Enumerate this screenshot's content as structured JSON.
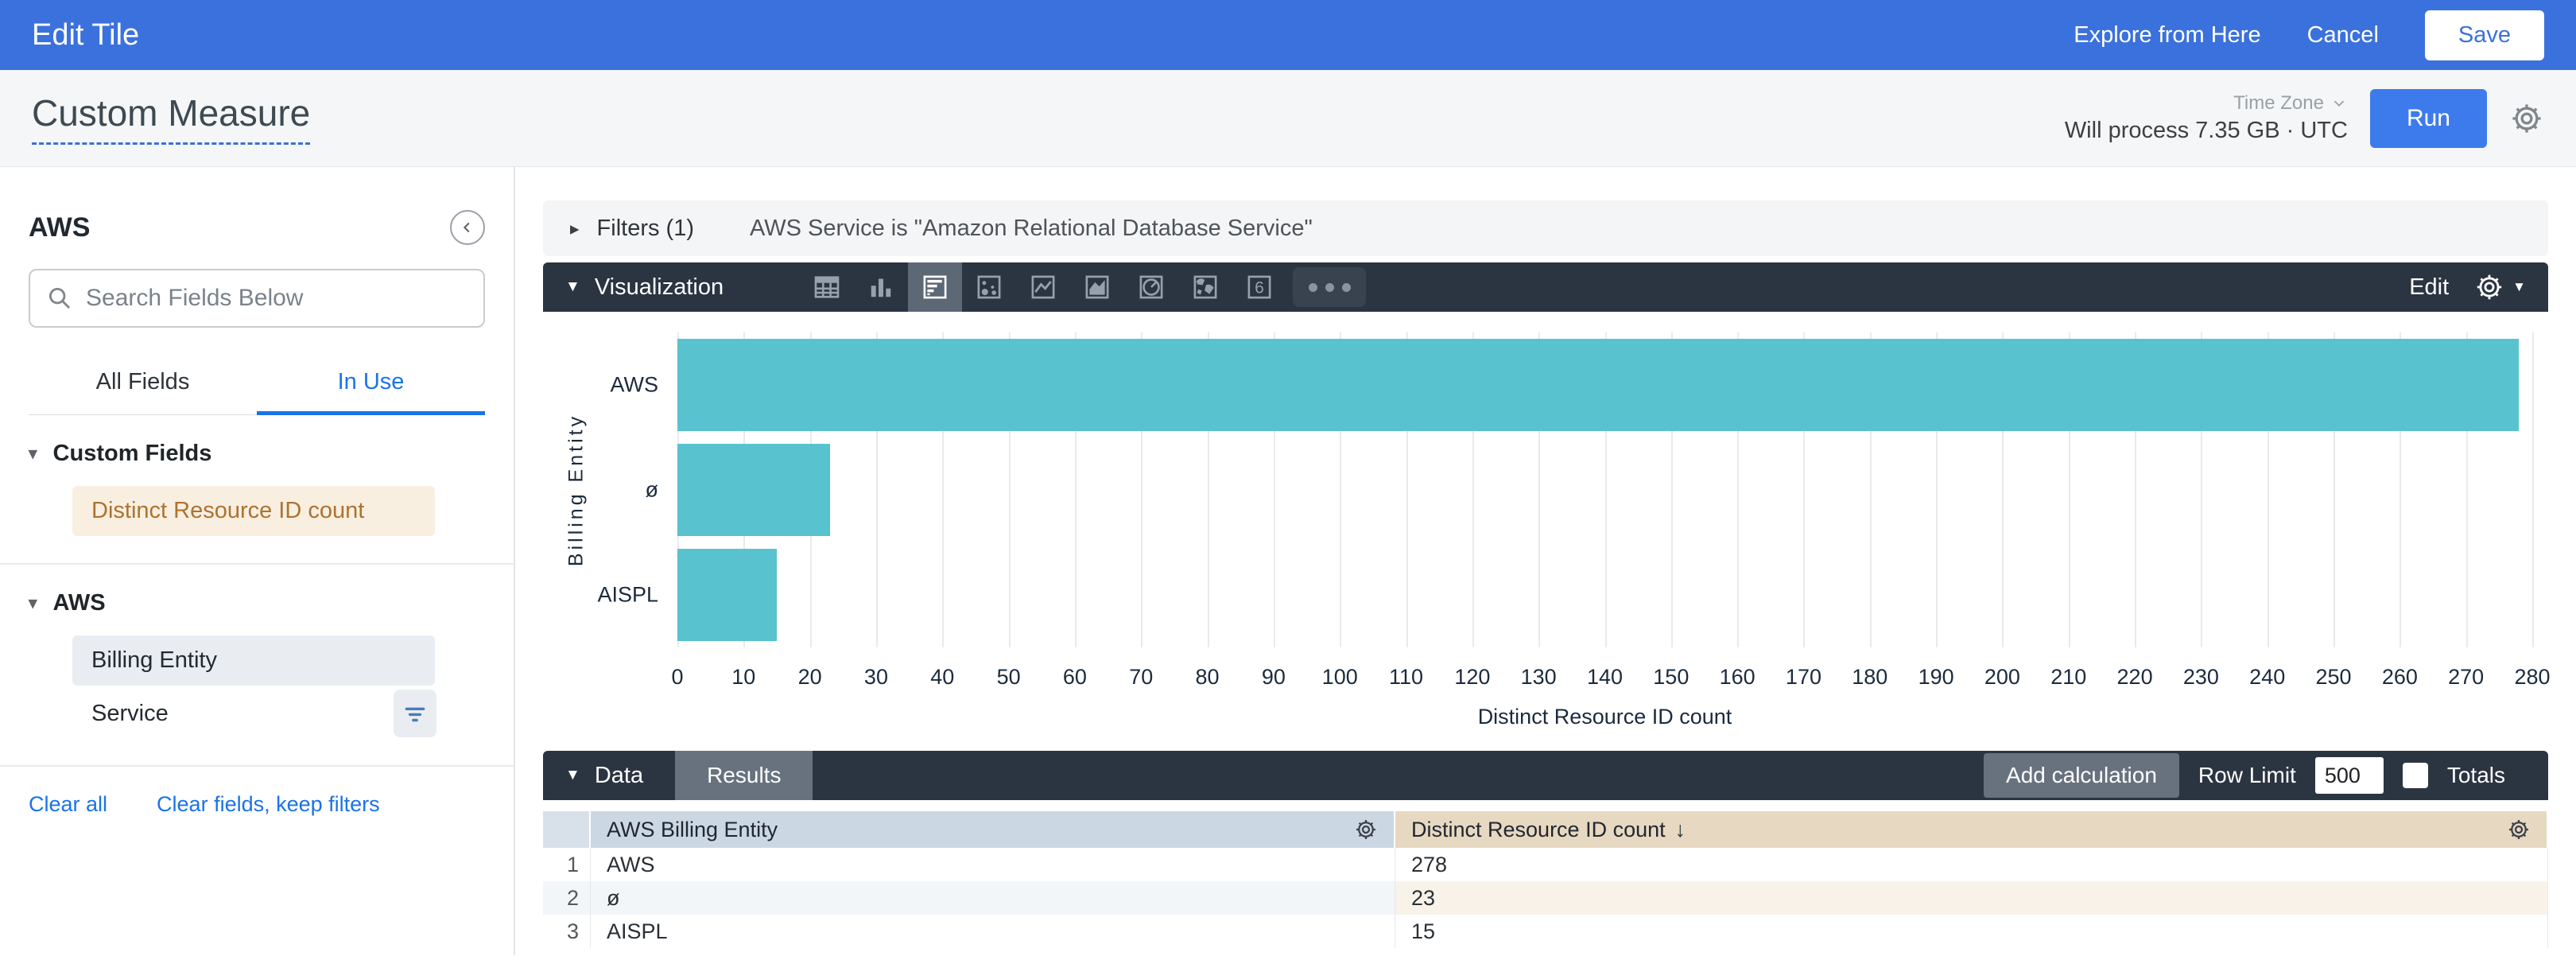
{
  "top_bar": {
    "title": "Edit Tile",
    "explore_label": "Explore from Here",
    "cancel_label": "Cancel",
    "save_label": "Save"
  },
  "header": {
    "title": "Custom Measure",
    "time_zone_label": "Time Zone",
    "process_text": "Will process 7.35 GB · UTC",
    "run_label": "Run"
  },
  "sidebar": {
    "title": "AWS",
    "search_placeholder": "Search Fields Below",
    "tabs": {
      "all_fields": "All Fields",
      "in_use": "In Use",
      "active": "In Use"
    },
    "sections": [
      {
        "label": "Custom Fields",
        "items": [
          {
            "label": "Distinct Resource ID count",
            "kind": "measure"
          }
        ]
      },
      {
        "label": "AWS",
        "items": [
          {
            "label": "Billing Entity",
            "kind": "dimension"
          },
          {
            "label": "Service",
            "kind": "plain",
            "has_filter": true
          }
        ]
      }
    ],
    "footer_links": {
      "clear_all": "Clear all",
      "clear_fields": "Clear fields, keep filters"
    }
  },
  "filters": {
    "toggle_label": "Filters (1)",
    "summary": "AWS Service is \"Amazon Relational Database Service\""
  },
  "visualization": {
    "label": "Visualization",
    "edit_label": "Edit",
    "icons": [
      {
        "name": "table"
      },
      {
        "name": "column"
      },
      {
        "name": "bar",
        "selected": true
      },
      {
        "name": "scatter"
      },
      {
        "name": "line"
      },
      {
        "name": "area"
      },
      {
        "name": "pie"
      },
      {
        "name": "map"
      },
      {
        "name": "single-value"
      },
      {
        "name": "more-options"
      }
    ]
  },
  "chart_data": {
    "type": "bar",
    "orientation": "horizontal",
    "categories": [
      "AWS",
      "ø",
      "AISPL"
    ],
    "values": [
      278,
      23,
      15
    ],
    "title": "",
    "xlabel": "Distinct Resource ID count",
    "ylabel": "Billing Entity",
    "xlim": [
      0,
      280
    ],
    "tick_step": 10,
    "grid": true,
    "bar_color": "#58C2CF",
    "legend": "none"
  },
  "data_section": {
    "label": "Data",
    "results_tab": "Results",
    "add_calculation": "Add calculation",
    "row_limit_label": "Row Limit",
    "row_limit_value": "500",
    "totals_label": "Totals"
  },
  "table": {
    "columns": [
      "AWS Billing Entity",
      "Distinct Resource ID count"
    ],
    "sort": {
      "column": "Distinct Resource ID count",
      "direction": "desc",
      "glyph": "↓"
    },
    "rows": [
      {
        "num": "1",
        "dimension": "AWS",
        "measure": "278"
      },
      {
        "num": "2",
        "dimension": "ø",
        "measure": "23"
      },
      {
        "num": "3",
        "dimension": "AISPL",
        "measure": "15"
      }
    ]
  },
  "colors": {
    "top_bar_blue": "#3B71DC",
    "accent_blue": "#1A73E8",
    "run_button_blue": "#3D7BED",
    "toolbar_dark": "#2B3441",
    "bar_teal": "#58C2CF",
    "dimension_header": "#CBD8E3",
    "measure_header": "#E7D8C1",
    "custom_field_bg": "#F8EFE0",
    "custom_field_text": "#AE7230"
  }
}
